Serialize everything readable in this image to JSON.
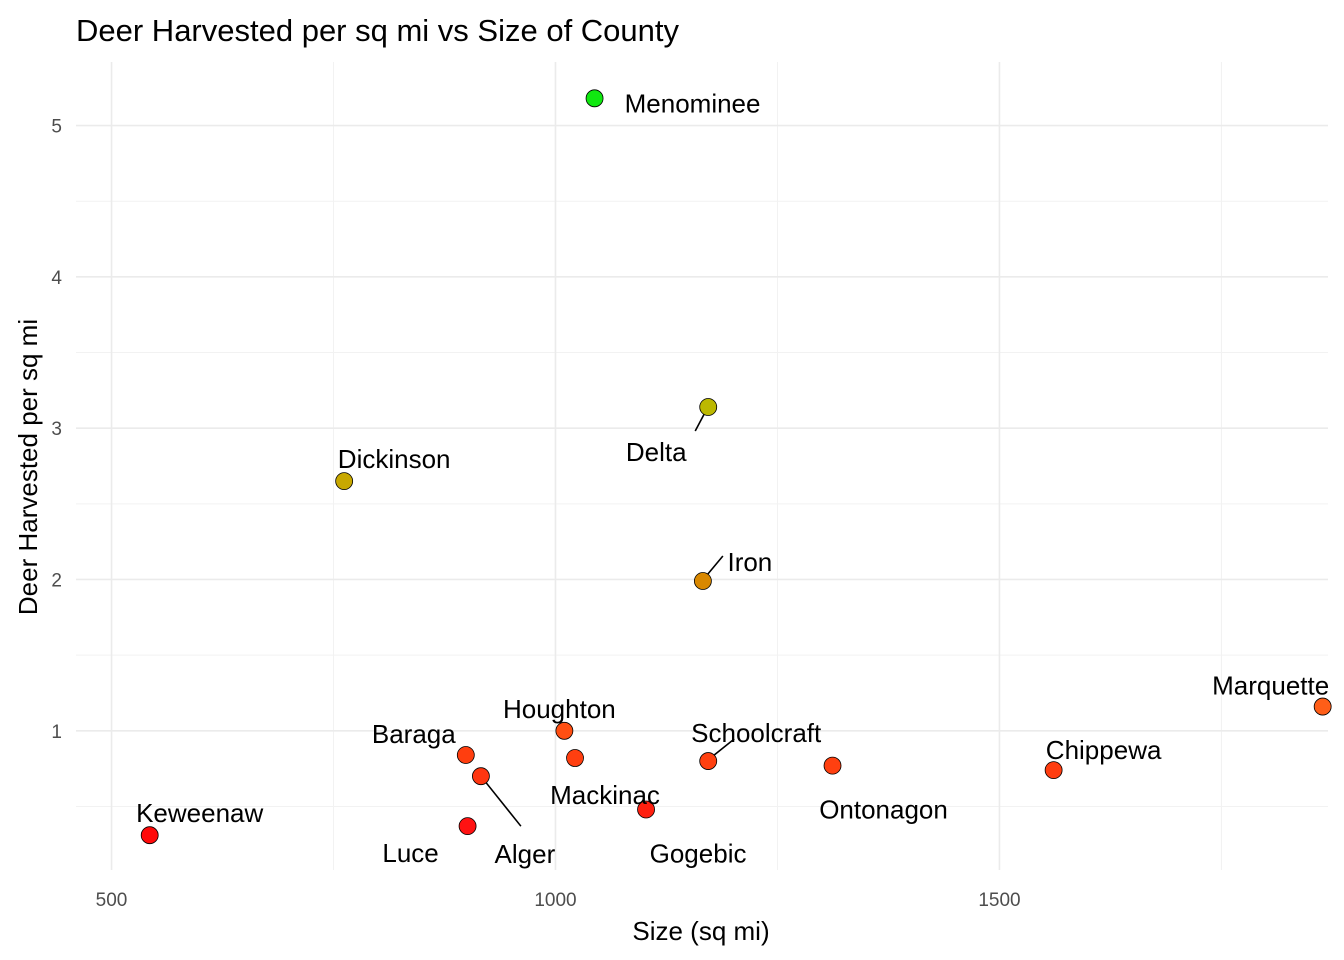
{
  "chart_data": {
    "type": "scatter",
    "title": "Deer Harvested per sq mi vs Size of County",
    "xlabel": "Size (sq mi)",
    "ylabel": "Deer Harvested per sq mi",
    "xlim": [
      460,
      1870
    ],
    "ylim": [
      0.08,
      5.42
    ],
    "xticks": [
      500,
      1000,
      1500
    ],
    "yticks": [
      1,
      2,
      3,
      4,
      5
    ],
    "xtick_labels": [
      "500",
      "1000",
      "1500"
    ],
    "ytick_labels": [
      "1",
      "2",
      "3",
      "4",
      "5"
    ],
    "grid": true,
    "legend": "none",
    "points": [
      {
        "label": "Keweenaw",
        "x": 543,
        "y": 0.31,
        "color": "#ff0a0a"
      },
      {
        "label": "Dickinson",
        "x": 762,
        "y": 2.65,
        "color": "#c8a800"
      },
      {
        "label": "Baraga",
        "x": 899,
        "y": 0.84,
        "color": "#ff3e0f"
      },
      {
        "label": "Luce",
        "x": 901,
        "y": 0.37,
        "color": "#ff1212"
      },
      {
        "label": "Alger",
        "x": 916,
        "y": 0.7,
        "color": "#ff3610"
      },
      {
        "label": "Houghton",
        "x": 1010,
        "y": 1.0,
        "color": "#ff4f12"
      },
      {
        "label": "Mackinac",
        "x": 1022,
        "y": 0.82,
        "color": "#ff3f10"
      },
      {
        "label": "Menominee",
        "x": 1044,
        "y": 5.18,
        "color": "#10e810"
      },
      {
        "label": "Gogebic",
        "x": 1102,
        "y": 0.48,
        "color": "#ff2010"
      },
      {
        "label": "Iron",
        "x": 1166,
        "y": 1.99,
        "color": "#d98800"
      },
      {
        "label": "Delta",
        "x": 1172,
        "y": 3.14,
        "color": "#bcb800"
      },
      {
        "label": "Schoolcraft",
        "x": 1172,
        "y": 0.8,
        "color": "#ff4010"
      },
      {
        "label": "Ontonagon",
        "x": 1312,
        "y": 0.77,
        "color": "#ff4010"
      },
      {
        "label": "Chippewa",
        "x": 1561,
        "y": 0.74,
        "color": "#ff3d10"
      },
      {
        "label": "Marquette",
        "x": 1864,
        "y": 1.16,
        "color": "#ff5e18"
      }
    ]
  }
}
